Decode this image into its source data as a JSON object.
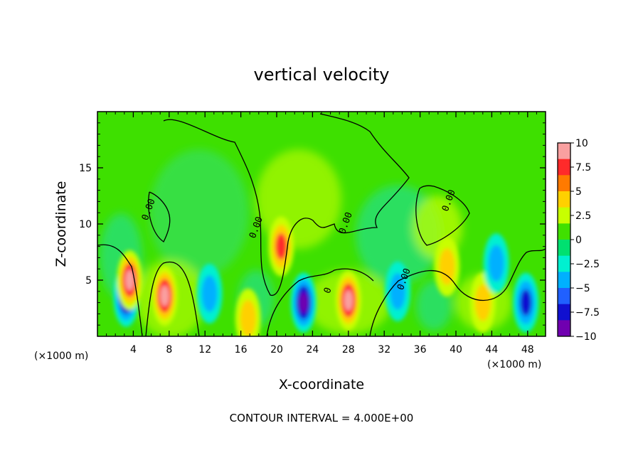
{
  "chart_data": {
    "type": "heatmap",
    "title": "vertical velocity",
    "xlabel": "X-coordinate",
    "ylabel": "Z-coordinate",
    "x_unit_label": "(×1000 m)",
    "xlim": [
      0,
      50
    ],
    "ylim": [
      0,
      20
    ],
    "x_ticks": [
      4,
      8,
      12,
      16,
      20,
      24,
      28,
      32,
      36,
      40,
      44,
      48
    ],
    "y_ticks": [
      5,
      10,
      15
    ],
    "contour_note": "CONTOUR INTERVAL = 4.000E+00",
    "colorbar": {
      "range": [
        -10,
        10
      ],
      "ticks": [
        "10",
        "7.5",
        "5",
        "2.5",
        "0",
        "−2.5",
        "−5",
        "−7.5",
        "−10"
      ],
      "colors": [
        "#f9a0a0",
        "#ff2a2a",
        "#ff7a00",
        "#ffd000",
        "#c8ff00",
        "#40e000",
        "#00e070",
        "#00f0d0",
        "#00b0ff",
        "#2060ff",
        "#1010d0",
        "#7000b0"
      ]
    },
    "features": [
      {
        "x": 3.2,
        "z": 3.5,
        "value": -10
      },
      {
        "x": 3.6,
        "z": 5.0,
        "value": 10
      },
      {
        "x": 7.5,
        "z": 3.6,
        "value": 10
      },
      {
        "x": 12.5,
        "z": 3.8,
        "value": -5
      },
      {
        "x": 16.8,
        "z": 1.6,
        "value": 5
      },
      {
        "x": 20.5,
        "z": 8.0,
        "value": 7.5
      },
      {
        "x": 23.0,
        "z": 3.0,
        "value": -10
      },
      {
        "x": 28.0,
        "z": 3.2,
        "value": 10
      },
      {
        "x": 33.5,
        "z": 4.0,
        "value": -5
      },
      {
        "x": 39.0,
        "z": 6.2,
        "value": 5
      },
      {
        "x": 43.0,
        "z": 3.0,
        "value": 5
      },
      {
        "x": 44.5,
        "z": 6.5,
        "value": -5
      },
      {
        "x": 47.8,
        "z": 3.0,
        "value": -7.5
      }
    ],
    "contour_labels": [
      {
        "x": 6.0,
        "z": 11.2,
        "text": "0.00"
      },
      {
        "x": 18.0,
        "z": 9.6,
        "text": "0.00"
      },
      {
        "x": 28.0,
        "z": 10.0,
        "text": "0.00"
      },
      {
        "x": 34.5,
        "z": 5.0,
        "text": "0.00"
      },
      {
        "x": 39.5,
        "z": 12.0,
        "text": "0.00"
      },
      {
        "x": 26.0,
        "z": 4.0,
        "text": "0"
      }
    ]
  }
}
